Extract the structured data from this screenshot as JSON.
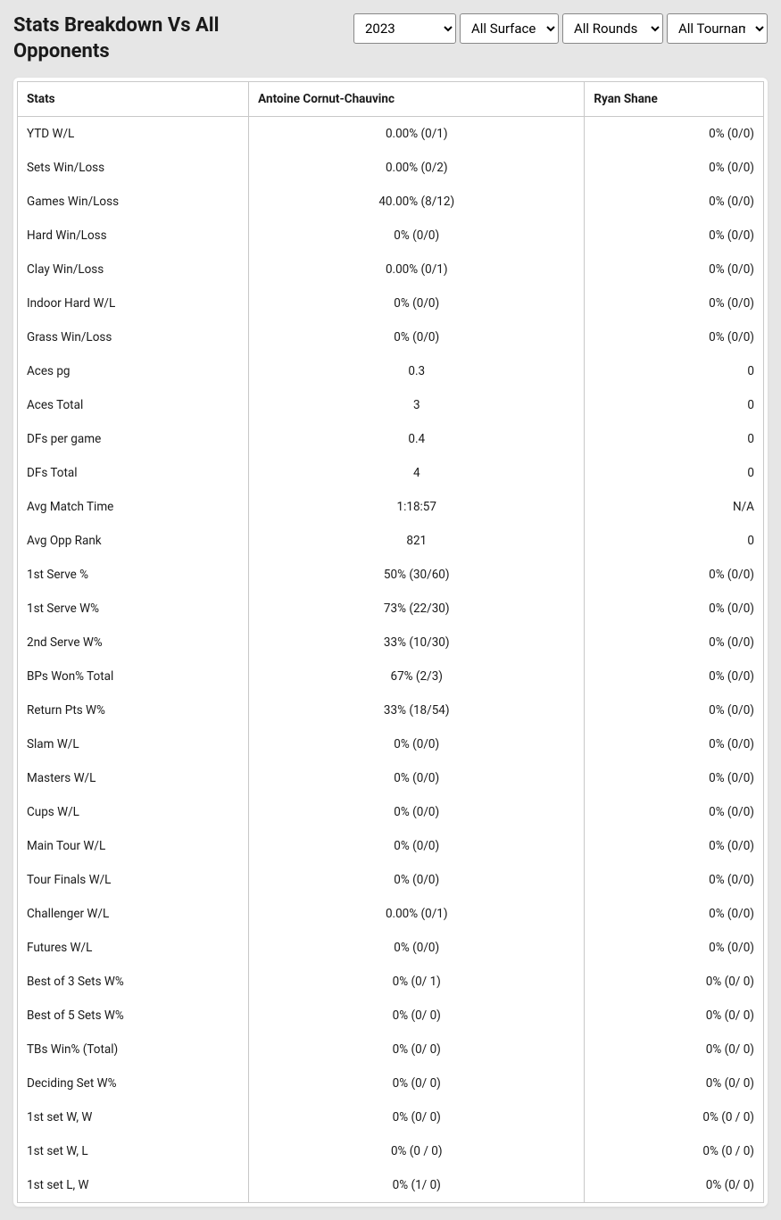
{
  "title": "Stats Breakdown Vs All Opponents",
  "filters": {
    "year": "2023",
    "surface": "All Surfaces",
    "round": "All Rounds",
    "tournament": "All Tournaments"
  },
  "table": {
    "columns": [
      "Stats",
      "Antoine Cornut-Chauvinc",
      "Ryan Shane"
    ],
    "rows": [
      [
        "YTD W/L",
        "0.00% (0/1)",
        "0% (0/0)"
      ],
      [
        "Sets Win/Loss",
        "0.00% (0/2)",
        "0% (0/0)"
      ],
      [
        "Games Win/Loss",
        "40.00% (8/12)",
        "0% (0/0)"
      ],
      [
        "Hard Win/Loss",
        "0% (0/0)",
        "0% (0/0)"
      ],
      [
        "Clay Win/Loss",
        "0.00% (0/1)",
        "0% (0/0)"
      ],
      [
        "Indoor Hard W/L",
        "0% (0/0)",
        "0% (0/0)"
      ],
      [
        "Grass Win/Loss",
        "0% (0/0)",
        "0% (0/0)"
      ],
      [
        "Aces pg",
        "0.3",
        "0"
      ],
      [
        "Aces Total",
        "3",
        "0"
      ],
      [
        "DFs per game",
        "0.4",
        "0"
      ],
      [
        "DFs Total",
        "4",
        "0"
      ],
      [
        "Avg Match Time",
        "1:18:57",
        "N/A"
      ],
      [
        "Avg Opp Rank",
        "821",
        "0"
      ],
      [
        "1st Serve %",
        "50% (30/60)",
        "0% (0/0)"
      ],
      [
        "1st Serve W%",
        "73% (22/30)",
        "0% (0/0)"
      ],
      [
        "2nd Serve W%",
        "33% (10/30)",
        "0% (0/0)"
      ],
      [
        "BPs Won% Total",
        "67% (2/3)",
        "0% (0/0)"
      ],
      [
        "Return Pts W%",
        "33% (18/54)",
        "0% (0/0)"
      ],
      [
        "Slam W/L",
        "0% (0/0)",
        "0% (0/0)"
      ],
      [
        "Masters W/L",
        "0% (0/0)",
        "0% (0/0)"
      ],
      [
        "Cups W/L",
        "0% (0/0)",
        "0% (0/0)"
      ],
      [
        "Main Tour W/L",
        "0% (0/0)",
        "0% (0/0)"
      ],
      [
        "Tour Finals W/L",
        "0% (0/0)",
        "0% (0/0)"
      ],
      [
        "Challenger W/L",
        "0.00% (0/1)",
        "0% (0/0)"
      ],
      [
        "Futures W/L",
        "0% (0/0)",
        "0% (0/0)"
      ],
      [
        "Best of 3 Sets W%",
        "0% (0/ 1)",
        "0% (0/ 0)"
      ],
      [
        "Best of 5 Sets W%",
        "0% (0/ 0)",
        "0% (0/ 0)"
      ],
      [
        "TBs Win% (Total)",
        "0% (0/ 0)",
        "0% (0/ 0)"
      ],
      [
        "Deciding Set W%",
        "0% (0/ 0)",
        "0% (0/ 0)"
      ],
      [
        "1st set W, W",
        "0% (0/ 0)",
        "0% (0 / 0)"
      ],
      [
        "1st set W, L",
        "0% (0 / 0)",
        "0% (0 / 0)"
      ],
      [
        "1st set L, W",
        "0% (1/ 0)",
        "0% (0/ 0)"
      ]
    ]
  }
}
